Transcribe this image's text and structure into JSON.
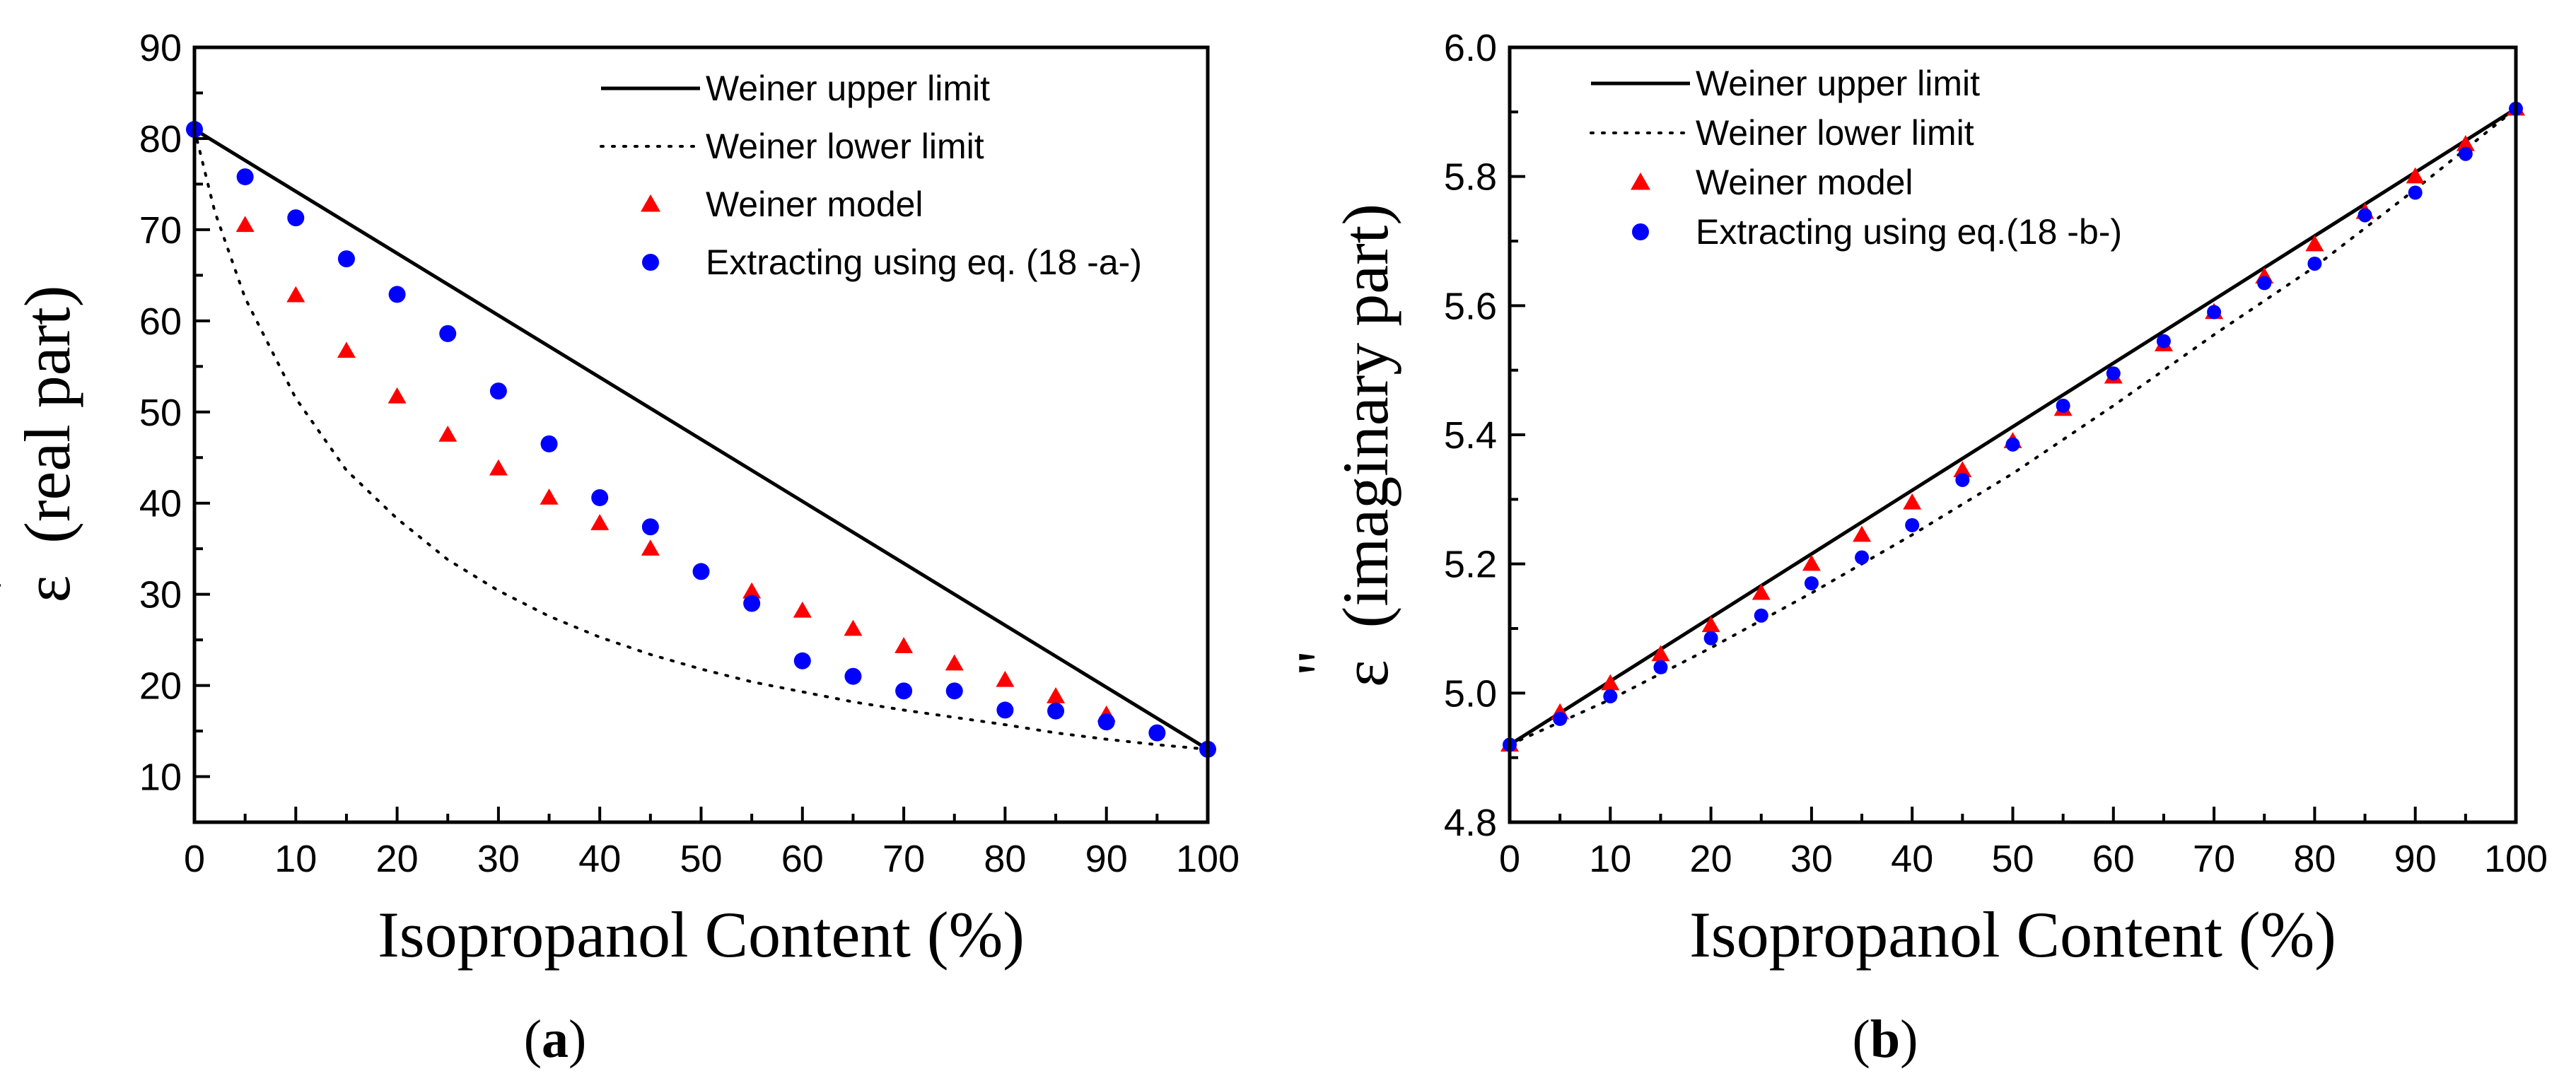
{
  "chart_data": [
    {
      "type": "scatter",
      "panel_label": "(a)",
      "panel_letter": "a",
      "paren_open": "(",
      "paren_close": ")",
      "xlabel": "Isopropanol Content (%)",
      "ylabel_symbol": "ε",
      "ylabel_prime": "'",
      "ylabel_text": "(real part)",
      "xlim": [
        0,
        100
      ],
      "ylim": [
        5,
        90
      ],
      "xticks": [
        0,
        10,
        20,
        30,
        40,
        50,
        60,
        70,
        80,
        90,
        100
      ],
      "yticks": [
        10,
        20,
        30,
        40,
        50,
        60,
        70,
        80,
        90
      ],
      "legend_position": "top-right",
      "series": [
        {
          "name": "Weiner upper limit",
          "kind": "line",
          "style": "solid",
          "color": "#000000",
          "x": [
            0,
            100
          ],
          "y": [
            81,
            13
          ]
        },
        {
          "name": "Weiner lower limit",
          "kind": "line",
          "style": "dotted",
          "color": "#000000",
          "x": [
            0,
            2,
            5,
            10,
            15,
            20,
            25,
            30,
            35,
            40,
            45,
            50,
            55,
            60,
            65,
            70,
            75,
            80,
            85,
            90,
            95,
            100
          ],
          "y": [
            81,
            72,
            62.5,
            51.5,
            43.6,
            38.3,
            33.8,
            30.4,
            27.6,
            25.3,
            23.4,
            21.8,
            20.4,
            19.3,
            18.2,
            17.3,
            16.5,
            15.7,
            14.8,
            14.1,
            13.5,
            13
          ]
        },
        {
          "name": "Weiner model",
          "kind": "marker",
          "marker": "triangle",
          "color": "#ff0000",
          "x": [
            5,
            10,
            15,
            20,
            25,
            30,
            35,
            40,
            45,
            55,
            60,
            65,
            70,
            75,
            80,
            85,
            90
          ],
          "y": [
            70.5,
            62.8,
            56.7,
            51.7,
            47.5,
            43.8,
            40.6,
            37.8,
            35,
            30.3,
            28.2,
            26.2,
            24.3,
            22.4,
            20.6,
            18.8,
            16.8
          ]
        },
        {
          "name": "Extracting using eq. (18 -a-)",
          "kind": "marker",
          "marker": "circle",
          "color": "#0000ff",
          "x": [
            0,
            5,
            10,
            15,
            20,
            25,
            30,
            35,
            40,
            45,
            50,
            55,
            60,
            65,
            70,
            75,
            80,
            85,
            90,
            95,
            100
          ],
          "y": [
            81,
            75.8,
            71.3,
            66.8,
            62.9,
            58.6,
            52.3,
            46.5,
            40.6,
            37.4,
            32.5,
            29,
            22.7,
            21,
            19.4,
            19.4,
            17.3,
            17.2,
            16,
            14.8,
            13
          ]
        }
      ]
    },
    {
      "type": "scatter",
      "panel_label": "(b)",
      "panel_letter": "b",
      "paren_open": "(",
      "paren_close": ")",
      "xlabel": "Isopropanol Content (%)",
      "ylabel_symbol": "ε",
      "ylabel_prime": "\"",
      "ylabel_text": "(imaginary part)",
      "xlim": [
        0,
        100
      ],
      "ylim": [
        4.8,
        6.0
      ],
      "xticks": [
        0,
        10,
        20,
        30,
        40,
        50,
        60,
        70,
        80,
        90,
        100
      ],
      "yticks": [
        "4.8",
        "5.0",
        "5.2",
        "5.4",
        "5.6",
        "5.8",
        "6.0"
      ],
      "legend_position": "top-left",
      "series": [
        {
          "name": "Weiner upper limit",
          "kind": "line",
          "style": "solid",
          "color": "#000000",
          "x": [
            0,
            100
          ],
          "y": [
            4.92,
            5.905
          ]
        },
        {
          "name": "Weiner lower limit",
          "kind": "line",
          "style": "dotted",
          "color": "#000000",
          "x": [
            0,
            10,
            20,
            30,
            40,
            50,
            60,
            70,
            80,
            90,
            100
          ],
          "y": [
            4.92,
            4.99,
            5.07,
            5.155,
            5.245,
            5.34,
            5.445,
            5.555,
            5.66,
            5.78,
            5.905
          ]
        },
        {
          "name": "Weiner model",
          "kind": "marker",
          "marker": "triangle",
          "color": "#ff0000",
          "x": [
            0,
            5,
            10,
            15,
            20,
            25,
            30,
            35,
            40,
            45,
            50,
            55,
            60,
            65,
            70,
            75,
            80,
            85,
            90,
            95,
            100
          ],
          "y": [
            4.92,
            4.97,
            5.015,
            5.06,
            5.105,
            5.155,
            5.2,
            5.245,
            5.295,
            5.345,
            5.39,
            5.44,
            5.49,
            5.54,
            5.59,
            5.645,
            5.695,
            5.745,
            5.8,
            5.85,
            5.905
          ]
        },
        {
          "name": "Extracting using eq.(18 -b-)",
          "kind": "marker",
          "marker": "circle",
          "color": "#0000ff",
          "x": [
            0,
            5,
            10,
            15,
            20,
            25,
            30,
            35,
            40,
            45,
            50,
            55,
            60,
            65,
            70,
            75,
            80,
            85,
            90,
            95,
            100
          ],
          "y": [
            4.92,
            4.96,
            4.995,
            5.04,
            5.085,
            5.12,
            5.17,
            5.21,
            5.26,
            5.33,
            5.385,
            5.445,
            5.495,
            5.545,
            5.59,
            5.635,
            5.665,
            5.74,
            5.775,
            5.835,
            5.905
          ]
        }
      ]
    }
  ]
}
